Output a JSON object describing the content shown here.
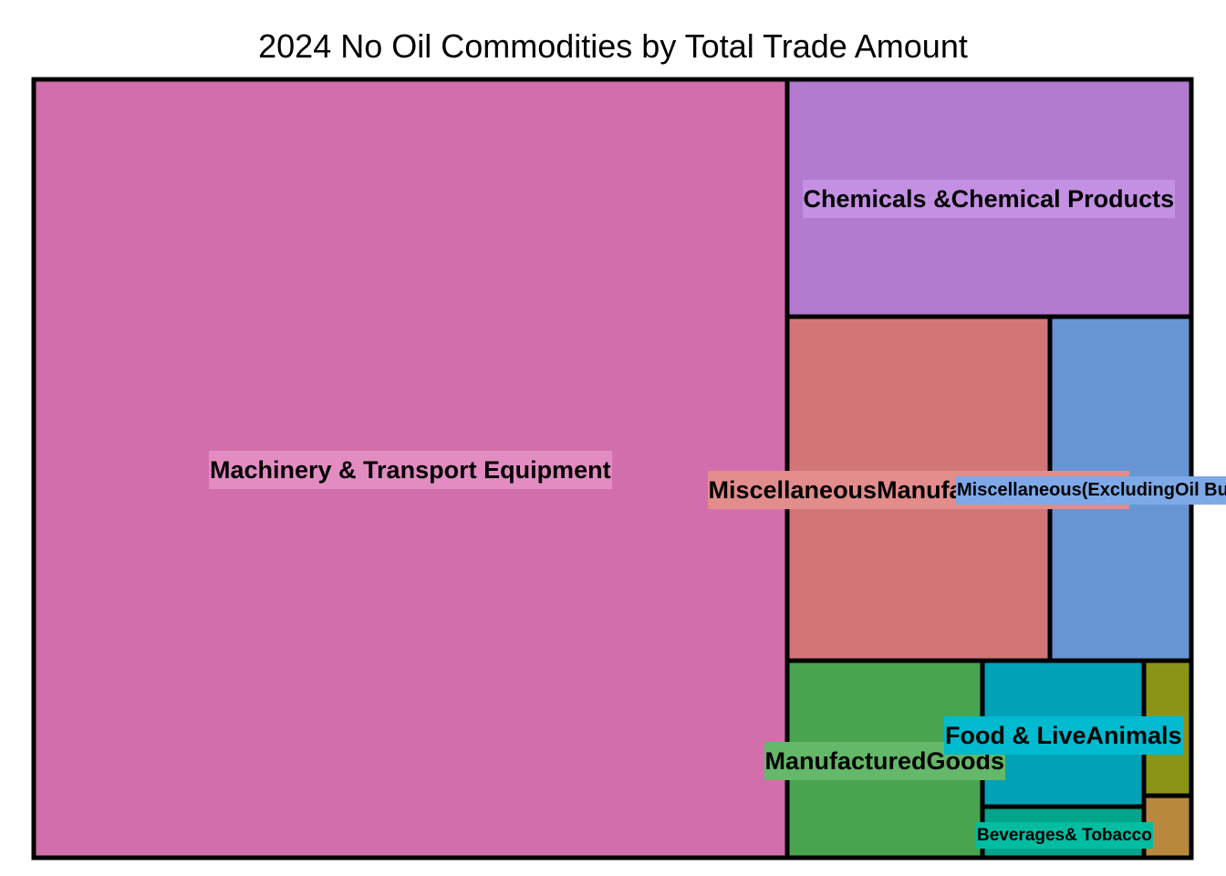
{
  "chart_data": {
    "type": "treemap",
    "title": "2024 No Oil Commodities by Total Trade Amount",
    "tiles": [
      {
        "name": "Machinery & Transport Equipment",
        "label_lines": [
          "Machinery & Transport Equipment"
        ],
        "value": 49.0,
        "color": "#D36EAC",
        "label_bg": "#E38CC2"
      },
      {
        "name": "Chemicals & Chemical Products",
        "label_lines": [
          "Chemicals &",
          "Chemical Products"
        ],
        "value": 16.0,
        "color": "#B27BCF",
        "label_bg": "#C490E3"
      },
      {
        "name": "Miscellaneous Manufactured Articles",
        "label_lines": [
          "Miscellaneous",
          "Manufactured",
          "Articles"
        ],
        "value": 11.8,
        "color": "#D27577",
        "label_bg": "#E38C8C"
      },
      {
        "name": "Miscellaneous (Excluding Oil Bunkers)",
        "label_lines": [
          "Miscellaneous",
          "(Excluding",
          "Oil Bunkers)"
        ],
        "value": 6.3,
        "color": "#6895D4",
        "label_bg": "#7DA9E6"
      },
      {
        "name": "Manufactured Goods",
        "label_lines": [
          "Manufactured",
          "Goods"
        ],
        "value": 7.1,
        "color": "#48A44F",
        "label_bg": "#63B86A"
      },
      {
        "name": "Food & Live Animals",
        "label_lines": [
          "Food & Live",
          "Animals"
        ],
        "value": 5.0,
        "color": "#00A2B8",
        "label_bg": "#00BACF"
      },
      {
        "name": "Beverages & Tobacco",
        "label_lines": [
          "Beverages",
          "& Tobacco"
        ],
        "value": 1.6,
        "color": "#00A58B",
        "label_bg": "#00BCA0"
      },
      {
        "name": "",
        "label_lines": [],
        "value": 2.2,
        "color": "#8B9415",
        "label_bg": ""
      },
      {
        "name": "",
        "label_lines": [],
        "value": 1.0,
        "color": "#B8883C",
        "label_bg": ""
      }
    ]
  }
}
